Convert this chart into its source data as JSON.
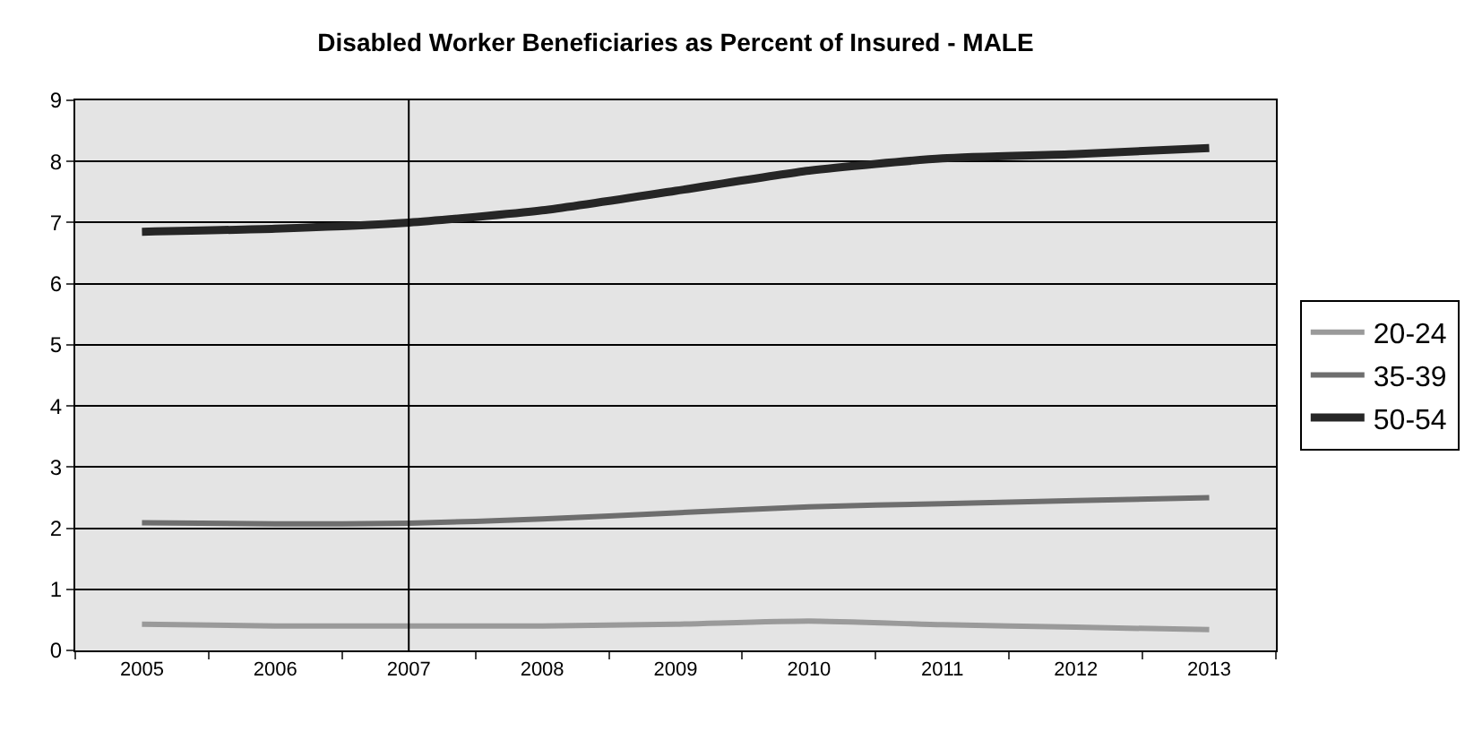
{
  "chart_data": {
    "type": "line",
    "title": "Disabled Worker Beneficiaries as Percent of Insured - MALE",
    "categories": [
      "2005",
      "2006",
      "2007",
      "2008",
      "2009",
      "2010",
      "2011",
      "2012",
      "2013"
    ],
    "series": [
      {
        "name": "20-24",
        "color": "#9a9a9a",
        "values": [
          0.43,
          0.4,
          0.4,
          0.4,
          0.43,
          0.48,
          0.42,
          0.38,
          0.34
        ]
      },
      {
        "name": "35-39",
        "color": "#6e6e6e",
        "values": [
          2.09,
          2.07,
          2.08,
          2.15,
          2.25,
          2.35,
          2.4,
          2.45,
          2.5
        ]
      },
      {
        "name": "50-54",
        "color": "#262626",
        "values": [
          6.85,
          6.9,
          7.0,
          7.2,
          7.52,
          7.85,
          8.05,
          8.12,
          8.22
        ]
      }
    ],
    "ylim": [
      0,
      9
    ],
    "yticks": [
      0,
      1,
      2,
      3,
      4,
      5,
      6,
      7,
      8,
      9
    ],
    "ref_lines": [
      {
        "axis": "x",
        "value": "2007",
        "color": "#000000"
      }
    ],
    "grid": "y",
    "legend": "right",
    "marker": "none",
    "line_style": "solid"
  }
}
